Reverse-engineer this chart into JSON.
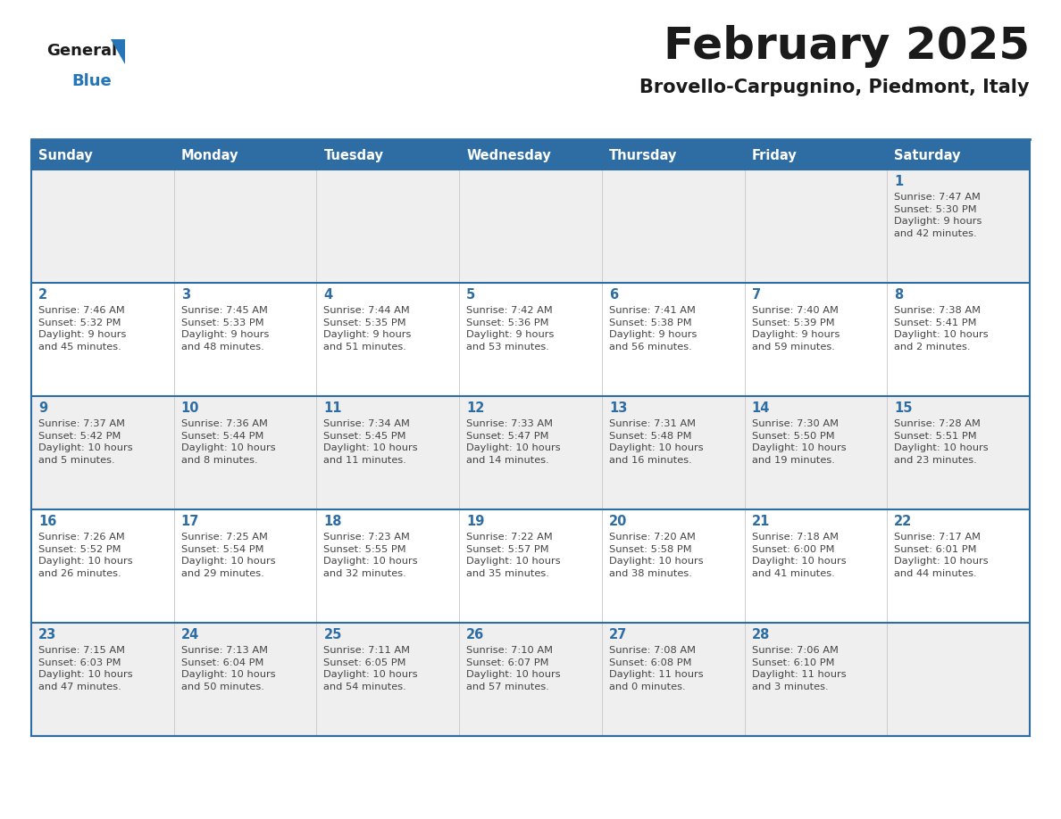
{
  "title": "February 2025",
  "subtitle": "Brovello-Carpugnino, Piedmont, Italy",
  "days_of_week": [
    "Sunday",
    "Monday",
    "Tuesday",
    "Wednesday",
    "Thursday",
    "Friday",
    "Saturday"
  ],
  "header_bg": "#2E6DA4",
  "header_text": "#FFFFFF",
  "cell_bg_odd": "#EFEFEF",
  "cell_bg_even": "#FFFFFF",
  "row_border_color": "#2E6DA4",
  "col_border_color": "#CCCCCC",
  "title_color": "#1A1A1A",
  "subtitle_color": "#1A1A1A",
  "day_number_color": "#2E6DA4",
  "cell_text_color": "#444444",
  "logo_general_color": "#1A1A1A",
  "logo_blue_color": "#2576B8",
  "weeks": [
    [
      {
        "day": null,
        "info": null
      },
      {
        "day": null,
        "info": null
      },
      {
        "day": null,
        "info": null
      },
      {
        "day": null,
        "info": null
      },
      {
        "day": null,
        "info": null
      },
      {
        "day": null,
        "info": null
      },
      {
        "day": 1,
        "info": "Sunrise: 7:47 AM\nSunset: 5:30 PM\nDaylight: 9 hours\nand 42 minutes."
      }
    ],
    [
      {
        "day": 2,
        "info": "Sunrise: 7:46 AM\nSunset: 5:32 PM\nDaylight: 9 hours\nand 45 minutes."
      },
      {
        "day": 3,
        "info": "Sunrise: 7:45 AM\nSunset: 5:33 PM\nDaylight: 9 hours\nand 48 minutes."
      },
      {
        "day": 4,
        "info": "Sunrise: 7:44 AM\nSunset: 5:35 PM\nDaylight: 9 hours\nand 51 minutes."
      },
      {
        "day": 5,
        "info": "Sunrise: 7:42 AM\nSunset: 5:36 PM\nDaylight: 9 hours\nand 53 minutes."
      },
      {
        "day": 6,
        "info": "Sunrise: 7:41 AM\nSunset: 5:38 PM\nDaylight: 9 hours\nand 56 minutes."
      },
      {
        "day": 7,
        "info": "Sunrise: 7:40 AM\nSunset: 5:39 PM\nDaylight: 9 hours\nand 59 minutes."
      },
      {
        "day": 8,
        "info": "Sunrise: 7:38 AM\nSunset: 5:41 PM\nDaylight: 10 hours\nand 2 minutes."
      }
    ],
    [
      {
        "day": 9,
        "info": "Sunrise: 7:37 AM\nSunset: 5:42 PM\nDaylight: 10 hours\nand 5 minutes."
      },
      {
        "day": 10,
        "info": "Sunrise: 7:36 AM\nSunset: 5:44 PM\nDaylight: 10 hours\nand 8 minutes."
      },
      {
        "day": 11,
        "info": "Sunrise: 7:34 AM\nSunset: 5:45 PM\nDaylight: 10 hours\nand 11 minutes."
      },
      {
        "day": 12,
        "info": "Sunrise: 7:33 AM\nSunset: 5:47 PM\nDaylight: 10 hours\nand 14 minutes."
      },
      {
        "day": 13,
        "info": "Sunrise: 7:31 AM\nSunset: 5:48 PM\nDaylight: 10 hours\nand 16 minutes."
      },
      {
        "day": 14,
        "info": "Sunrise: 7:30 AM\nSunset: 5:50 PM\nDaylight: 10 hours\nand 19 minutes."
      },
      {
        "day": 15,
        "info": "Sunrise: 7:28 AM\nSunset: 5:51 PM\nDaylight: 10 hours\nand 23 minutes."
      }
    ],
    [
      {
        "day": 16,
        "info": "Sunrise: 7:26 AM\nSunset: 5:52 PM\nDaylight: 10 hours\nand 26 minutes."
      },
      {
        "day": 17,
        "info": "Sunrise: 7:25 AM\nSunset: 5:54 PM\nDaylight: 10 hours\nand 29 minutes."
      },
      {
        "day": 18,
        "info": "Sunrise: 7:23 AM\nSunset: 5:55 PM\nDaylight: 10 hours\nand 32 minutes."
      },
      {
        "day": 19,
        "info": "Sunrise: 7:22 AM\nSunset: 5:57 PM\nDaylight: 10 hours\nand 35 minutes."
      },
      {
        "day": 20,
        "info": "Sunrise: 7:20 AM\nSunset: 5:58 PM\nDaylight: 10 hours\nand 38 minutes."
      },
      {
        "day": 21,
        "info": "Sunrise: 7:18 AM\nSunset: 6:00 PM\nDaylight: 10 hours\nand 41 minutes."
      },
      {
        "day": 22,
        "info": "Sunrise: 7:17 AM\nSunset: 6:01 PM\nDaylight: 10 hours\nand 44 minutes."
      }
    ],
    [
      {
        "day": 23,
        "info": "Sunrise: 7:15 AM\nSunset: 6:03 PM\nDaylight: 10 hours\nand 47 minutes."
      },
      {
        "day": 24,
        "info": "Sunrise: 7:13 AM\nSunset: 6:04 PM\nDaylight: 10 hours\nand 50 minutes."
      },
      {
        "day": 25,
        "info": "Sunrise: 7:11 AM\nSunset: 6:05 PM\nDaylight: 10 hours\nand 54 minutes."
      },
      {
        "day": 26,
        "info": "Sunrise: 7:10 AM\nSunset: 6:07 PM\nDaylight: 10 hours\nand 57 minutes."
      },
      {
        "day": 27,
        "info": "Sunrise: 7:08 AM\nSunset: 6:08 PM\nDaylight: 11 hours\nand 0 minutes."
      },
      {
        "day": 28,
        "info": "Sunrise: 7:06 AM\nSunset: 6:10 PM\nDaylight: 11 hours\nand 3 minutes."
      },
      {
        "day": null,
        "info": null
      }
    ]
  ]
}
